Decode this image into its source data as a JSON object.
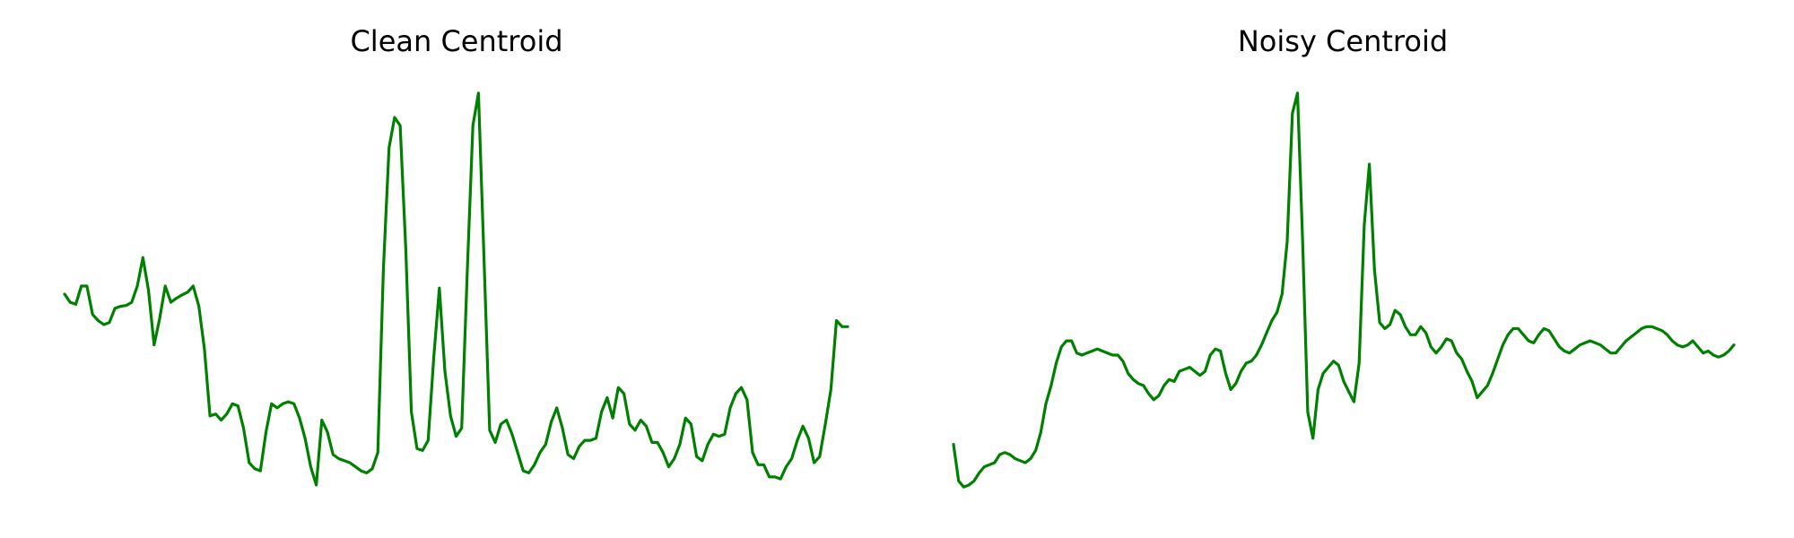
{
  "chart_data": [
    {
      "type": "line",
      "title": "Clean Centroid",
      "xlabel": "",
      "ylabel": "",
      "axes_visible": false,
      "grid": false,
      "line_color": "#008000",
      "ylim": [
        0.0,
        1.0
      ],
      "y": [
        0.49,
        0.47,
        0.465,
        0.51,
        0.51,
        0.44,
        0.425,
        0.415,
        0.42,
        0.455,
        0.46,
        0.462,
        0.47,
        0.51,
        0.58,
        0.5,
        0.365,
        0.43,
        0.51,
        0.47,
        0.48,
        0.488,
        0.495,
        0.51,
        0.46,
        0.355,
        0.19,
        0.195,
        0.18,
        0.195,
        0.22,
        0.215,
        0.16,
        0.075,
        0.06,
        0.055,
        0.15,
        0.22,
        0.21,
        0.22,
        0.225,
        0.22,
        0.185,
        0.135,
        0.065,
        0.02,
        0.18,
        0.15,
        0.095,
        0.085,
        0.08,
        0.075,
        0.065,
        0.055,
        0.05,
        0.06,
        0.1,
        0.55,
        0.85,
        0.925,
        0.905,
        0.6,
        0.2,
        0.11,
        0.105,
        0.13,
        0.335,
        0.505,
        0.3,
        0.19,
        0.14,
        0.16,
        0.55,
        0.905,
        0.985,
        0.57,
        0.155,
        0.125,
        0.17,
        0.18,
        0.145,
        0.1,
        0.055,
        0.05,
        0.07,
        0.1,
        0.12,
        0.175,
        0.21,
        0.16,
        0.095,
        0.085,
        0.115,
        0.13,
        0.13,
        0.135,
        0.2,
        0.235,
        0.185,
        0.26,
        0.245,
        0.17,
        0.155,
        0.18,
        0.165,
        0.125,
        0.125,
        0.1,
        0.065,
        0.085,
        0.12,
        0.185,
        0.17,
        0.09,
        0.08,
        0.12,
        0.145,
        0.14,
        0.145,
        0.21,
        0.245,
        0.26,
        0.23,
        0.1,
        0.07,
        0.07,
        0.04,
        0.04,
        0.035,
        0.065,
        0.085,
        0.13,
        0.165,
        0.135,
        0.075,
        0.09,
        0.17,
        0.255,
        0.425,
        0.41,
        0.41
      ]
    },
    {
      "type": "line",
      "title": "Noisy Centroid",
      "xlabel": "",
      "ylabel": "",
      "axes_visible": false,
      "grid": false,
      "line_color": "#008000",
      "ylim": [
        0.0,
        1.0
      ],
      "y": [
        0.12,
        0.03,
        0.015,
        0.02,
        0.03,
        0.05,
        0.065,
        0.07,
        0.075,
        0.095,
        0.1,
        0.095,
        0.085,
        0.08,
        0.075,
        0.085,
        0.105,
        0.15,
        0.22,
        0.265,
        0.32,
        0.36,
        0.375,
        0.375,
        0.345,
        0.34,
        0.345,
        0.35,
        0.355,
        0.35,
        0.345,
        0.34,
        0.34,
        0.325,
        0.295,
        0.28,
        0.27,
        0.265,
        0.245,
        0.23,
        0.24,
        0.265,
        0.28,
        0.275,
        0.3,
        0.305,
        0.31,
        0.3,
        0.29,
        0.3,
        0.34,
        0.355,
        0.35,
        0.295,
        0.255,
        0.27,
        0.3,
        0.32,
        0.325,
        0.34,
        0.365,
        0.395,
        0.425,
        0.445,
        0.49,
        0.62,
        0.935,
        0.985,
        0.62,
        0.2,
        0.135,
        0.255,
        0.295,
        0.31,
        0.325,
        0.315,
        0.275,
        0.25,
        0.225,
        0.32,
        0.66,
        0.81,
        0.55,
        0.42,
        0.405,
        0.415,
        0.45,
        0.44,
        0.41,
        0.39,
        0.39,
        0.41,
        0.395,
        0.36,
        0.345,
        0.36,
        0.38,
        0.375,
        0.345,
        0.33,
        0.3,
        0.275,
        0.235,
        0.25,
        0.265,
        0.295,
        0.33,
        0.365,
        0.39,
        0.405,
        0.405,
        0.39,
        0.375,
        0.37,
        0.39,
        0.405,
        0.4,
        0.38,
        0.36,
        0.35,
        0.345,
        0.355,
        0.365,
        0.37,
        0.375,
        0.37,
        0.365,
        0.355,
        0.345,
        0.345,
        0.36,
        0.375,
        0.385,
        0.395,
        0.405,
        0.41,
        0.41,
        0.405,
        0.4,
        0.39,
        0.375,
        0.365,
        0.36,
        0.365,
        0.375,
        0.36,
        0.345,
        0.35,
        0.34,
        0.335,
        0.34,
        0.35,
        0.365
      ]
    }
  ]
}
